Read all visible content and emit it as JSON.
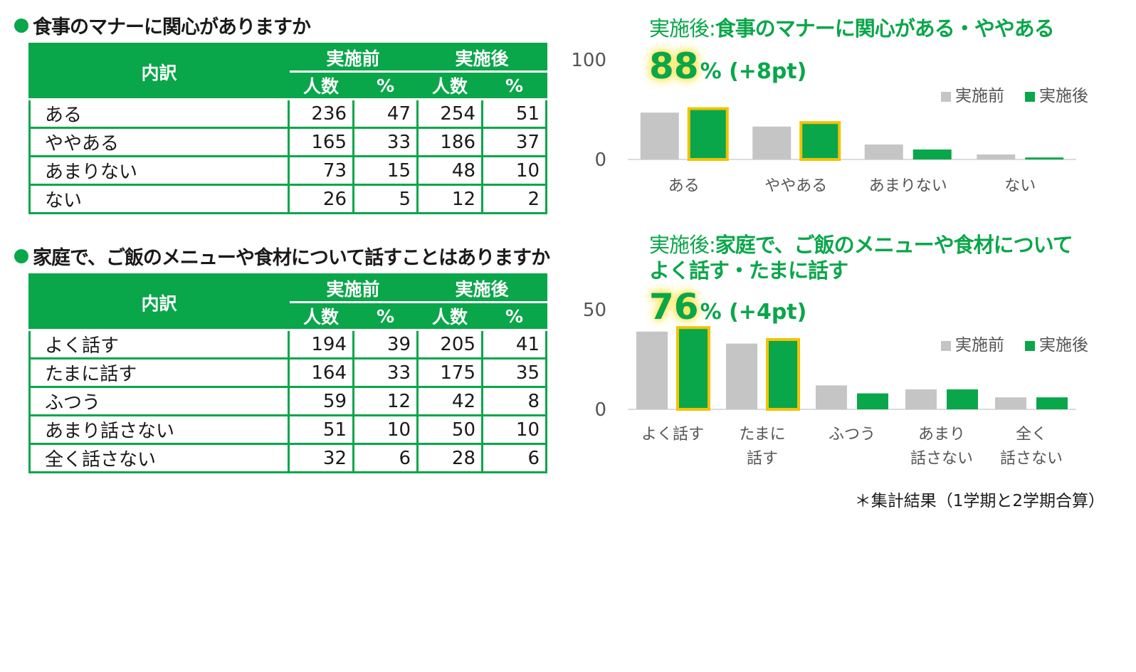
{
  "colors": {
    "accent": "#0aa64a",
    "before_bar": "#c5c5c5",
    "after_outline": "#f2c200"
  },
  "q1": {
    "heading": "食事のマナーに関心がありますか",
    "table": {
      "label_header": "内訳",
      "before_header": "実施前",
      "after_header": "実施後",
      "count_header": "人数",
      "pct_header": "%",
      "rows": [
        {
          "label": "ある",
          "before_n": "236",
          "before_pct": "47",
          "after_n": "254",
          "after_pct": "51"
        },
        {
          "label": "ややある",
          "before_n": "165",
          "before_pct": "33",
          "after_n": "186",
          "after_pct": "37"
        },
        {
          "label": "あまりない",
          "before_n": "73",
          "before_pct": "15",
          "after_n": "48",
          "after_pct": "10"
        },
        {
          "label": "ない",
          "before_n": "26",
          "before_pct": "5",
          "after_n": "12",
          "after_pct": "2"
        }
      ]
    },
    "chart_title_prefix": "実施後:",
    "chart_title_lines": [
      "食事のマナーに関心がある・ややある"
    ],
    "highlight_value": "88",
    "highlight_rest": "% (+8pt)"
  },
  "q2": {
    "heading": "家庭で、ご飯のメニューや食材について話すことはありますか",
    "table": {
      "label_header": "内訳",
      "before_header": "実施前",
      "after_header": "実施後",
      "count_header": "人数",
      "pct_header": "%",
      "rows": [
        {
          "label": "よく話す",
          "before_n": "194",
          "before_pct": "39",
          "after_n": "205",
          "after_pct": "41"
        },
        {
          "label": "たまに話す",
          "before_n": "164",
          "before_pct": "33",
          "after_n": "175",
          "after_pct": "35"
        },
        {
          "label": "ふつう",
          "before_n": "59",
          "before_pct": "12",
          "after_n": "42",
          "after_pct": "8"
        },
        {
          "label": "あまり話さない",
          "before_n": "51",
          "before_pct": "10",
          "after_n": "50",
          "after_pct": "10"
        },
        {
          "label": "全く話さない",
          "before_n": "32",
          "before_pct": "6",
          "after_n": "28",
          "after_pct": "6"
        }
      ]
    },
    "chart_title_prefix": "実施後:",
    "chart_title_lines": [
      "家庭で、ご飯のメニューや食材について",
      "よく話す・たまに話す"
    ],
    "highlight_value": "76",
    "highlight_rest": "% (+4pt)"
  },
  "footnote": "＊集計結果（1学期と2学期合算）",
  "chart_data": [
    {
      "type": "bar",
      "categories": [
        "ある",
        "ややある",
        "あまりない",
        "ない"
      ],
      "series": [
        {
          "name": "実施前",
          "values": [
            47,
            33,
            15,
            5
          ]
        },
        {
          "name": "実施後",
          "values": [
            51,
            37,
            10,
            2
          ]
        }
      ],
      "yticks": [
        "0",
        "100"
      ],
      "ylim": [
        0,
        100
      ],
      "legend": "top-right",
      "highlighted_categories": [
        "ある",
        "ややある"
      ],
      "grid": false
    },
    {
      "type": "bar",
      "categories": [
        [
          "よく話す"
        ],
        [
          "たまに",
          "話す"
        ],
        [
          "ふつう"
        ],
        [
          "あまり",
          "話さない"
        ],
        [
          "全く",
          "話さない"
        ]
      ],
      "series": [
        {
          "name": "実施前",
          "values": [
            39,
            33,
            12,
            10,
            6
          ]
        },
        {
          "name": "実施後",
          "values": [
            41,
            35,
            8,
            10,
            6
          ]
        }
      ],
      "yticks": [
        "0",
        "50"
      ],
      "ylim": [
        0,
        50
      ],
      "legend": "top-right",
      "highlighted_categories": [
        "よく話す",
        "たまに話す"
      ],
      "grid": false
    }
  ]
}
